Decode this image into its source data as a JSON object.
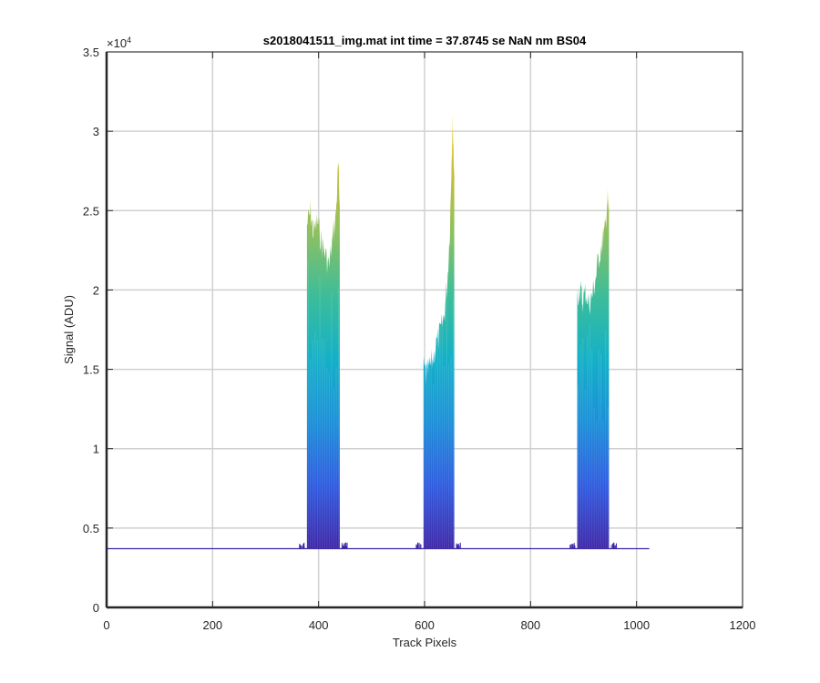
{
  "chart_data": {
    "type": "area",
    "title": "s2018041511_img.mat int time = 37.8745 se  NaN nm BS04",
    "xlabel": "Track Pixels",
    "ylabel": "Signal (ADU)",
    "y_exponent_label": "×10",
    "y_exponent": "4",
    "xlim": [
      0,
      1200
    ],
    "ylim": [
      0,
      35000
    ],
    "x_ticks": [
      "0",
      "200",
      "400",
      "600",
      "800",
      "1000",
      "1200"
    ],
    "y_ticks": [
      "0",
      "0.5",
      "1",
      "1.5",
      "2",
      "2.5",
      "3",
      "3.5"
    ],
    "grid": true,
    "baseline": 3700,
    "x_extent": [
      0,
      1024
    ],
    "colormap": [
      "#3e26a8",
      "#2e5ae0",
      "#1a8fd8",
      "#14b0c8",
      "#3cbd9a",
      "#8cc062",
      "#c8bf3a",
      "#f9d423"
    ],
    "peaks": [
      {
        "x_start": 378,
        "x_end": 440,
        "max": 28700,
        "profile": [
          [
            378,
            25000
          ],
          [
            385,
            25800
          ],
          [
            390,
            24500
          ],
          [
            398,
            25200
          ],
          [
            405,
            24000
          ],
          [
            412,
            23200
          ],
          [
            420,
            22400
          ],
          [
            428,
            24500
          ],
          [
            433,
            25800
          ],
          [
            437,
            28700
          ],
          [
            440,
            26000
          ]
        ]
      },
      {
        "x_start": 598,
        "x_end": 656,
        "max": 31700,
        "profile": [
          [
            598,
            16200
          ],
          [
            603,
            15500
          ],
          [
            608,
            15900
          ],
          [
            615,
            16500
          ],
          [
            622,
            17500
          ],
          [
            630,
            18200
          ],
          [
            637,
            19300
          ],
          [
            643,
            21500
          ],
          [
            648,
            25000
          ],
          [
            651,
            29500
          ],
          [
            653,
            31700
          ],
          [
            656,
            28000
          ]
        ]
      },
      {
        "x_start": 888,
        "x_end": 948,
        "max": 26700,
        "profile": [
          [
            888,
            20500
          ],
          [
            893,
            21000
          ],
          [
            898,
            20200
          ],
          [
            904,
            20800
          ],
          [
            910,
            20000
          ],
          [
            916,
            20500
          ],
          [
            922,
            21500
          ],
          [
            928,
            22800
          ],
          [
            935,
            24000
          ],
          [
            940,
            24500
          ],
          [
            945,
            26700
          ],
          [
            948,
            25500
          ]
        ]
      }
    ]
  }
}
